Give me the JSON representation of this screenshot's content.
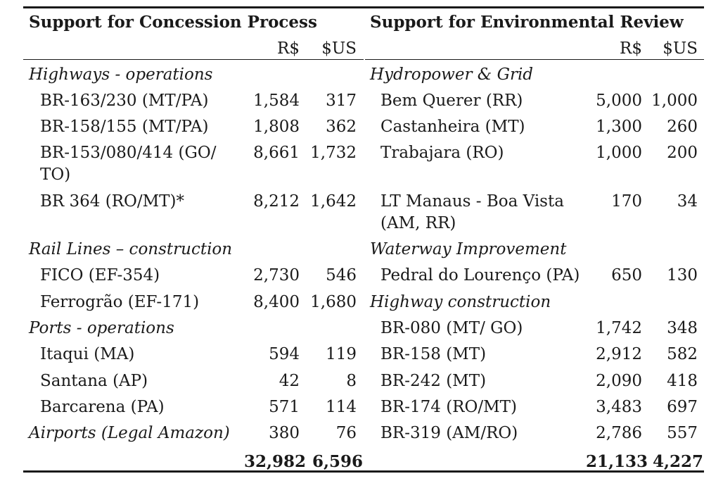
{
  "left": {
    "heading": "Support for Concession Process",
    "col_brl": "R$",
    "col_usd": "$US",
    "cat_highways": "Highways - operations",
    "cat_rail": "Rail Lines – construction",
    "cat_ports": "Ports - operations",
    "airports_label": "Airports (Legal Amazon)",
    "airports_brl": "380",
    "airports_usd": "76",
    "highway_rows": [
      {
        "name": "BR-163/230 (MT/PA)",
        "brl": "1,584",
        "usd": "317"
      },
      {
        "name": "BR-158/155 (MT/PA)",
        "brl": "1,808",
        "usd": "362"
      },
      {
        "name": "BR-153/080/414 (GO/",
        "name2": "TO)",
        "brl": "8,661",
        "usd": "1,732"
      },
      {
        "name": "BR 364 (RO/MT)*",
        "brl": "8,212",
        "usd": "1,642"
      }
    ],
    "rail_rows": [
      {
        "name": "FICO (EF-354)",
        "brl": "2,730",
        "usd": "546"
      },
      {
        "name": "Ferrogrão (EF-171)",
        "brl": "8,400",
        "usd": "1,680"
      }
    ],
    "port_rows": [
      {
        "name": "Itaqui (MA)",
        "brl": "594",
        "usd": "119"
      },
      {
        "name": "Santana (AP)",
        "brl": "42",
        "usd": "8"
      },
      {
        "name": "Barcarena (PA)",
        "brl": "571",
        "usd": "114"
      }
    ],
    "total_brl": "32,982",
    "total_usd": "6,596"
  },
  "right": {
    "heading": "Support for Environmental Review",
    "col_brl": "R$",
    "col_usd": "$US",
    "cat_hydro": "Hydropower & Grid",
    "cat_waterway": "Waterway Improvement",
    "cat_highway": "Highway construction",
    "hydro_rows": [
      {
        "name": "Bem Querer (RR)",
        "brl": "5,000",
        "usd": "1,000"
      },
      {
        "name": "Castanheira (MT)",
        "brl": "1,300",
        "usd": "260"
      },
      {
        "name": "Trabajara (RO)",
        "brl": "1,000",
        "usd": "200"
      },
      {
        "name": "LT Manaus - Boa Vista",
        "name2": "(AM, RR)",
        "brl": "170",
        "usd": "34"
      }
    ],
    "waterway_rows": [
      {
        "name": "Pedral do Lourenço (PA)",
        "brl": "650",
        "usd": "130"
      }
    ],
    "highway_rows": [
      {
        "name": "BR-080 (MT/ GO)",
        "brl": "1,742",
        "usd": "348"
      },
      {
        "name": "BR-158 (MT)",
        "brl": "2,912",
        "usd": "582"
      },
      {
        "name": "BR-242 (MT)",
        "brl": "2,090",
        "usd": "418"
      },
      {
        "name": "BR-174 (RO/MT)",
        "brl": "3,483",
        "usd": "697"
      },
      {
        "name": "BR-319 (AM/RO)",
        "brl": "2,786",
        "usd": "557"
      }
    ],
    "total_brl": "21,133",
    "total_usd": "4,227"
  }
}
